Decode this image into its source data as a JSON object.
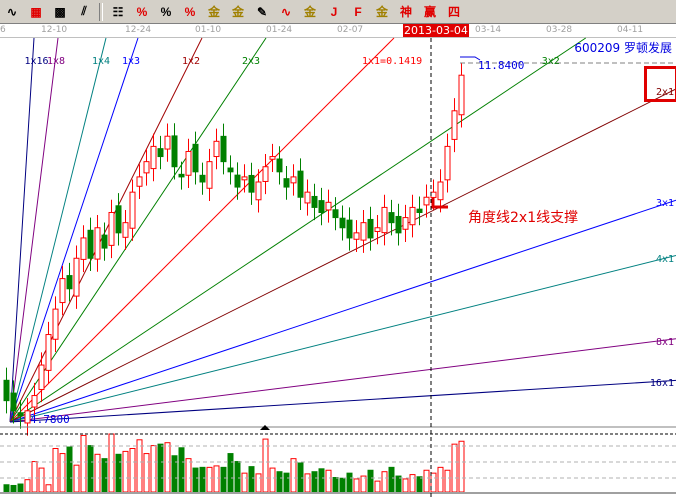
{
  "toolbar": {
    "icons": [
      {
        "name": "line-tool-icon",
        "glyph": "∿",
        "tone": ""
      },
      {
        "name": "grid-icon",
        "glyph": "▦",
        "tone": "red"
      },
      {
        "name": "grid-box-icon",
        "glyph": "▩",
        "tone": ""
      },
      {
        "name": "parallel-lines-icon",
        "glyph": "⫽",
        "tone": ""
      },
      {
        "name": "fibonacci-icon",
        "glyph": "☷",
        "tone": ""
      },
      {
        "name": "percent-line-icon",
        "glyph": "%",
        "tone": "red"
      },
      {
        "name": "percent-icon",
        "glyph": "%",
        "tone": ""
      },
      {
        "name": "percent-levels-icon",
        "glyph": "%",
        "tone": "red"
      },
      {
        "name": "gold-circle-icon",
        "glyph": "金",
        "tone": "gold"
      },
      {
        "name": "gold-levels-icon",
        "glyph": "金",
        "tone": "gold"
      },
      {
        "name": "pen-icon",
        "glyph": "✎",
        "tone": ""
      },
      {
        "name": "wave-icon",
        "glyph": "∿",
        "tone": "red"
      },
      {
        "name": "gold-line-icon",
        "glyph": "金",
        "tone": "gold"
      },
      {
        "name": "j-fan-icon",
        "glyph": "J",
        "tone": "red"
      },
      {
        "name": "f-fan-icon",
        "glyph": "F",
        "tone": "red"
      },
      {
        "name": "gold-fan-icon",
        "glyph": "金",
        "tone": "gold"
      },
      {
        "name": "god-fan-icon",
        "glyph": "神",
        "tone": "red"
      },
      {
        "name": "win-fan-icon",
        "glyph": "赢",
        "tone": "red"
      },
      {
        "name": "four-fan-icon",
        "glyph": "四",
        "tone": "red"
      }
    ]
  },
  "date_axis": {
    "labels": [
      "6",
      "12-10",
      "12-24",
      "01-10",
      "01-24",
      "02-07",
      "03-14",
      "03-28",
      "04-11"
    ],
    "highlight": "2013-03-04"
  },
  "stock": {
    "code": "600209",
    "name": "罗顿发展"
  },
  "annotations": {
    "note": "角度线2x1线支撑",
    "high_label": "11.8400",
    "low_label": "4.7800"
  },
  "gann_fan": {
    "origin_price": 4.78,
    "unit": "1x1=0.1419",
    "lines": [
      {
        "label": "1x16",
        "ratio": 16,
        "color": "#000080"
      },
      {
        "label": "1x8",
        "ratio": 8,
        "color": "#800080"
      },
      {
        "label": "1x4",
        "ratio": 4,
        "color": "#008080"
      },
      {
        "label": "1x3",
        "ratio": 3,
        "color": "#0000ff"
      },
      {
        "label": "1x2",
        "ratio": 2,
        "color": "#a00000"
      },
      {
        "label": "2x3",
        "ratio": 1.5,
        "color": "#008000"
      },
      {
        "label": "1x1=0.1419",
        "ratio": 1,
        "color": "#ff0000"
      },
      {
        "label": "3x2",
        "ratio": 0.667,
        "color": "#008000"
      },
      {
        "label": "2x1",
        "ratio": 0.5,
        "color": "#800000"
      },
      {
        "label": "3x1",
        "ratio": 0.333,
        "color": "#0000ff"
      },
      {
        "label": "4x1",
        "ratio": 0.25,
        "color": "#008080"
      },
      {
        "label": "8x1",
        "ratio": 0.125,
        "color": "#800080"
      },
      {
        "label": "16x1",
        "ratio": 0.0625,
        "color": "#000080"
      }
    ]
  },
  "chart_data": {
    "type": "candlestick",
    "ylim": [
      4.6,
      12.4
    ],
    "close": [
      5.2,
      5.0,
      4.9,
      5.0,
      5.3,
      5.9,
      6.5,
      7.0,
      7.6,
      7.4,
      8.0,
      8.4,
      8.0,
      8.6,
      8.2,
      8.9,
      8.5,
      8.7,
      9.3,
      9.6,
      9.9,
      10.2,
      10.0,
      10.4,
      9.8,
      9.6,
      10.1,
      9.7,
      9.5,
      9.9,
      10.3,
      9.9,
      9.7,
      9.4,
      9.6,
      9.3,
      9.5,
      9.8,
      10.0,
      9.7,
      9.4,
      9.6,
      9.2,
      9.3,
      9.0,
      8.9,
      9.1,
      8.8,
      8.6,
      8.4,
      8.5,
      8.7,
      8.4,
      8.6,
      9.0,
      8.7,
      8.5,
      8.8,
      9.0,
      8.9,
      9.2,
      9.3,
      9.5,
      10.2,
      10.9,
      11.6
    ],
    "volume": [
      10,
      9,
      11,
      17,
      42,
      33,
      10,
      60,
      53,
      62,
      37,
      78,
      64,
      52,
      46,
      80,
      52,
      56,
      60,
      72,
      53,
      64,
      66,
      68,
      50,
      61,
      46,
      33,
      34,
      34,
      36,
      34,
      53,
      42,
      26,
      35,
      25,
      73,
      33,
      28,
      26,
      46,
      40,
      25,
      28,
      32,
      30,
      20,
      19,
      26,
      18,
      22,
      30,
      15,
      28,
      34,
      22,
      18,
      24,
      21,
      30,
      26,
      34,
      30,
      66,
      70
    ],
    "colors": {
      "up": "#ff0000",
      "down": "#008000"
    }
  }
}
